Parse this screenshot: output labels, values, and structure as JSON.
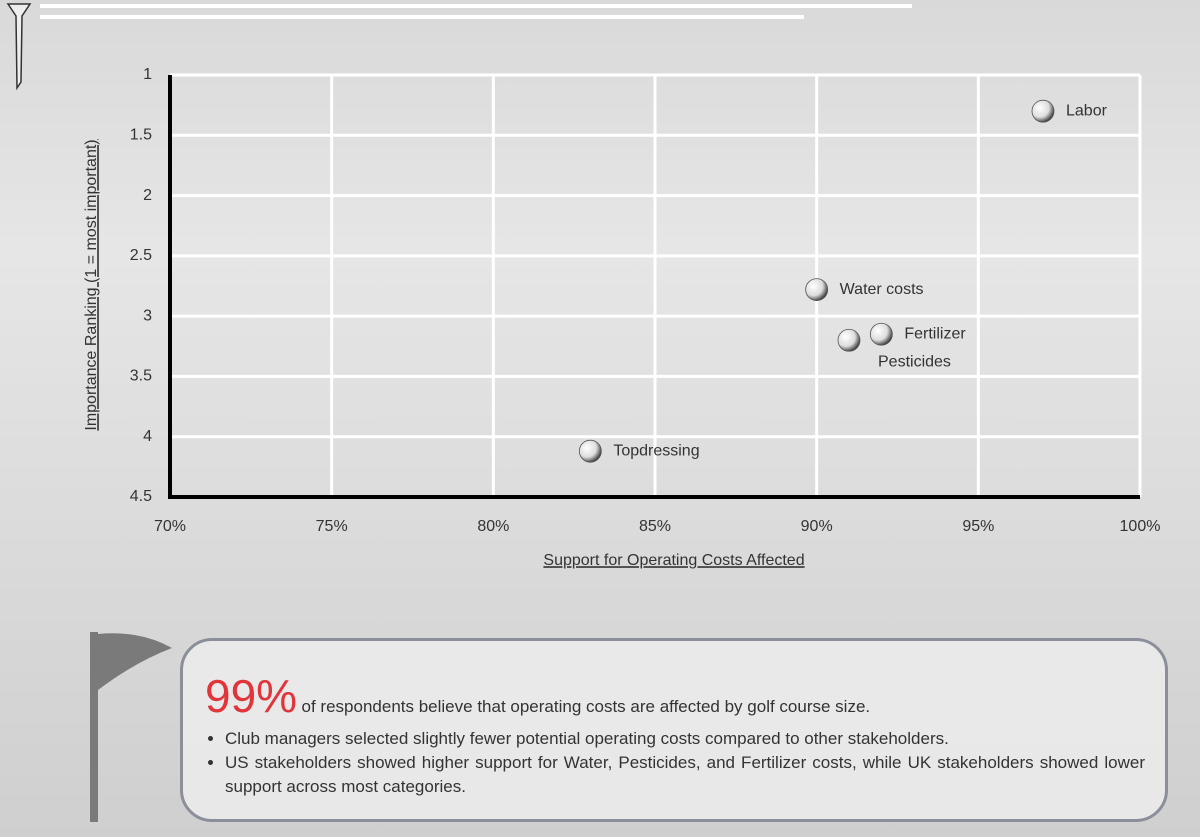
{
  "chart_data": {
    "type": "scatter",
    "xlabel": "Support for Operating Costs Affected",
    "ylabel": "Importance Ranking (1 = most important)",
    "x": [
      97,
      90,
      92,
      91,
      83
    ],
    "values": [
      1.3,
      2.78,
      3.15,
      3.2,
      4.12
    ],
    "labels": [
      "Labor",
      "Water costs",
      "Fertilizer",
      "Pesticides",
      "Topdressing"
    ],
    "color": "#f4f4f4",
    "xlim": [
      70,
      100
    ],
    "xticks": [
      {
        "value": 70,
        "label": "70%"
      },
      {
        "value": 75,
        "label": "75%"
      },
      {
        "value": 80,
        "label": "80%"
      },
      {
        "value": 85,
        "label": "85%"
      },
      {
        "value": 90,
        "label": "90%"
      },
      {
        "value": 95,
        "label": "95%"
      },
      {
        "value": 100,
        "label": "100%"
      }
    ],
    "ylim": [
      1,
      4.5
    ],
    "y_inverted": true,
    "yticks": [
      1,
      1.5,
      2,
      2.5,
      3,
      3.5,
      4,
      4.5
    ],
    "grid": true
  },
  "callout": {
    "highlight": "99%",
    "text": "of respondents believe that operating costs are affected by golf course size.",
    "bullets": [
      "Club managers selected slightly fewer potential operating costs compared to other stakeholders.",
      "US stakeholders showed higher support for Water, Pesticides, and Fertilizer costs, while UK stakeholders showed lower support across most categories."
    ]
  }
}
